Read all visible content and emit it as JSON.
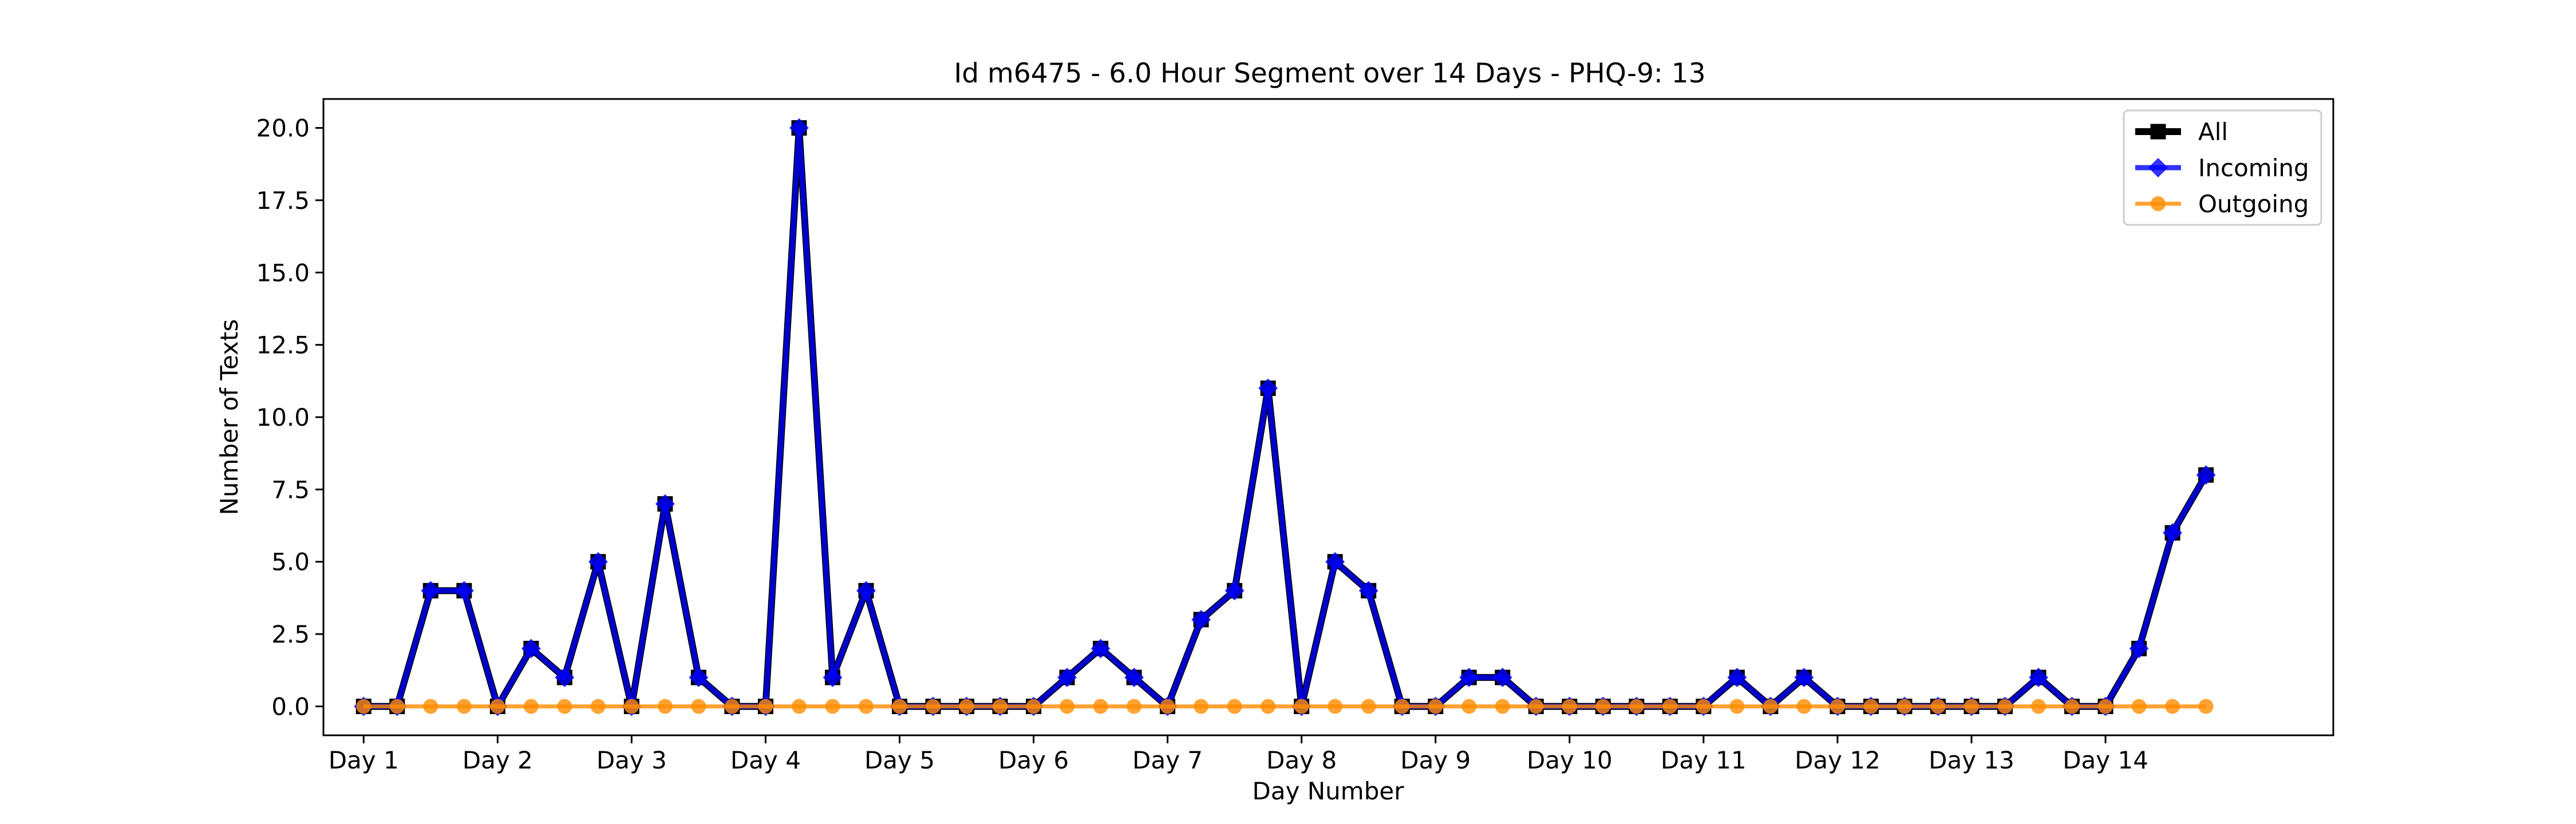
{
  "chart_data": {
    "type": "line",
    "title": "Id m6475 - 6.0 Hour Segment over 14 Days - PHQ-9: 13",
    "xlabel": "Day Number",
    "ylabel": "Number of Texts",
    "xlim": [
      -0.3,
      14.7
    ],
    "ylim": [
      -1.0,
      21.0
    ],
    "x_ticks": [
      {
        "value": 0,
        "label": "Day 1"
      },
      {
        "value": 1,
        "label": "Day 2"
      },
      {
        "value": 2,
        "label": "Day 3"
      },
      {
        "value": 3,
        "label": "Day 4"
      },
      {
        "value": 4,
        "label": "Day 5"
      },
      {
        "value": 5,
        "label": "Day 6"
      },
      {
        "value": 6,
        "label": "Day 7"
      },
      {
        "value": 7,
        "label": "Day 8"
      },
      {
        "value": 8,
        "label": "Day 9"
      },
      {
        "value": 9,
        "label": "Day 10"
      },
      {
        "value": 10,
        "label": "Day 11"
      },
      {
        "value": 11,
        "label": "Day 12"
      },
      {
        "value": 12,
        "label": "Day 13"
      },
      {
        "value": 13,
        "label": "Day 14"
      }
    ],
    "y_ticks": [
      {
        "value": 0,
        "label": "0.0"
      },
      {
        "value": 2.5,
        "label": "2.5"
      },
      {
        "value": 5,
        "label": "5.0"
      },
      {
        "value": 7.5,
        "label": "7.5"
      },
      {
        "value": 10,
        "label": "10.0"
      },
      {
        "value": 12.5,
        "label": "12.5"
      },
      {
        "value": 15,
        "label": "15.0"
      },
      {
        "value": 17.5,
        "label": "17.5"
      },
      {
        "value": 20,
        "label": "20.0"
      }
    ],
    "x": [
      0,
      0.25,
      0.5,
      0.75,
      1,
      1.25,
      1.5,
      1.75,
      2,
      2.25,
      2.5,
      2.75,
      3,
      3.25,
      3.5,
      3.75,
      4,
      4.25,
      4.5,
      4.75,
      5,
      5.25,
      5.5,
      5.75,
      6,
      6.25,
      6.5,
      6.75,
      7,
      7.25,
      7.5,
      7.75,
      8,
      8.25,
      8.5,
      8.75,
      9,
      9.25,
      9.5,
      9.75,
      10,
      10.25,
      10.5,
      10.75,
      11,
      11.25,
      11.5,
      11.75,
      12,
      12.25,
      12.5,
      12.75,
      13,
      13.25,
      13.5,
      13.75
    ],
    "series": [
      {
        "name": "All",
        "color": "#000000",
        "marker": "square",
        "values": [
          0,
          0,
          4,
          4,
          0,
          2,
          1,
          5,
          0,
          7,
          1,
          0,
          0,
          20,
          1,
          4,
          0,
          0,
          0,
          0,
          0,
          1,
          2,
          1,
          0,
          3,
          4,
          11,
          0,
          5,
          4,
          0,
          0,
          1,
          1,
          0,
          0,
          0,
          0,
          0,
          0,
          1,
          0,
          1,
          0,
          0,
          0,
          0,
          0,
          0,
          1,
          0,
          0,
          2,
          6,
          8
        ]
      },
      {
        "name": "Incoming",
        "color": "#0000ff",
        "marker": "diamond",
        "values": [
          0,
          0,
          4,
          4,
          0,
          2,
          1,
          5,
          0,
          7,
          1,
          0,
          0,
          20,
          1,
          4,
          0,
          0,
          0,
          0,
          0,
          1,
          2,
          1,
          0,
          3,
          4,
          11,
          0,
          5,
          4,
          0,
          0,
          1,
          1,
          0,
          0,
          0,
          0,
          0,
          0,
          1,
          0,
          1,
          0,
          0,
          0,
          0,
          0,
          0,
          1,
          0,
          0,
          2,
          6,
          8
        ]
      },
      {
        "name": "Outgoing",
        "color": "#ff8c00",
        "marker": "circle",
        "values": [
          0,
          0,
          0,
          0,
          0,
          0,
          0,
          0,
          0,
          0,
          0,
          0,
          0,
          0,
          0,
          0,
          0,
          0,
          0,
          0,
          0,
          0,
          0,
          0,
          0,
          0,
          0,
          0,
          0,
          0,
          0,
          0,
          0,
          0,
          0,
          0,
          0,
          0,
          0,
          0,
          0,
          0,
          0,
          0,
          0,
          0,
          0,
          0,
          0,
          0,
          0,
          0,
          0,
          0,
          0,
          0
        ]
      }
    ],
    "legend": {
      "position": "top-right",
      "entries": [
        "All",
        "Incoming",
        "Outgoing"
      ]
    },
    "grid": false
  }
}
